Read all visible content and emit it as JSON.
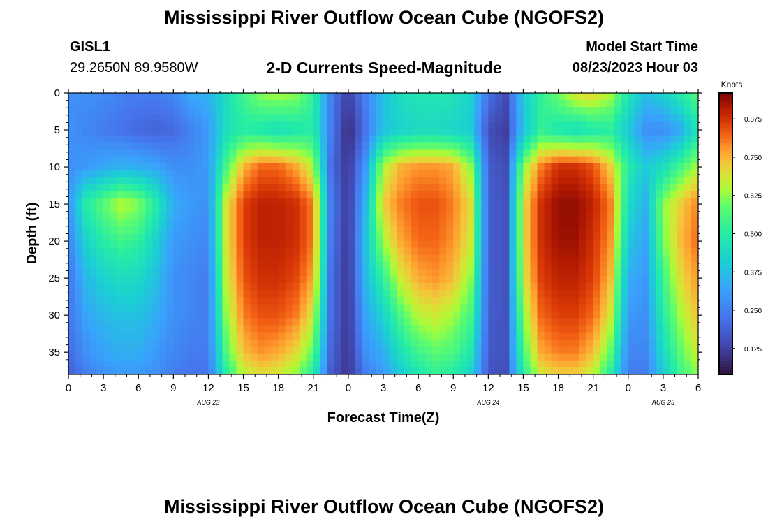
{
  "header": {
    "title": "Mississippi River Outflow Ocean Cube (NGOFS2)",
    "station_id": "GISL1",
    "station_coords": "29.2650N  89.9580W",
    "plot_title": "2-D Currents Speed-Magnitude",
    "start_time_label": "Model Start Time",
    "start_time_value": "08/23/2023 Hour 03"
  },
  "footer": {
    "title": "Mississippi River Outflow Ocean Cube (NGOFS2)"
  },
  "chart_data": {
    "type": "heatmap",
    "xlabel": "Forecast Time(Z)",
    "ylabel": "Depth (ft)",
    "colorbar_label": "Knots",
    "xlim": [
      0,
      54
    ],
    "ylim": [
      0,
      38
    ],
    "x_ticks": [
      0,
      3,
      6,
      9,
      12,
      15,
      18,
      21,
      24,
      27,
      30,
      33,
      36,
      39,
      42,
      45,
      48,
      51,
      54
    ],
    "x_tick_labels": [
      "0",
      "3",
      "6",
      "9",
      "12",
      "15",
      "18",
      "21",
      "0",
      "3",
      "6",
      "9",
      "12",
      "15",
      "18",
      "21",
      "0",
      "3",
      "6"
    ],
    "date_labels": [
      {
        "x": 12,
        "text": "AUG 23"
      },
      {
        "x": 36,
        "text": "AUG 24"
      },
      {
        "x": 51,
        "text": "AUG 25"
      }
    ],
    "y_ticks": [
      0,
      5,
      10,
      15,
      20,
      25,
      30,
      35
    ],
    "y_tick_labels": [
      "0",
      "5",
      "10",
      "15",
      "20",
      "25",
      "30",
      "35"
    ],
    "colorbar_ticks": [
      0.125,
      0.25,
      0.375,
      0.5,
      0.625,
      0.75,
      0.875
    ],
    "colorbar_tick_labels": [
      "0.125",
      "0.250",
      "0.375",
      "0.500",
      "0.625",
      "0.750",
      "0.875"
    ],
    "colorbar_range": [
      0.04,
      0.96
    ],
    "depths_ft": [
      0,
      5,
      10,
      15,
      20,
      25,
      30,
      35,
      38
    ],
    "times_hr": [
      0,
      1.5,
      3,
      4.5,
      6,
      7.5,
      9,
      10.5,
      12,
      13.5,
      15,
      16.5,
      18,
      19.5,
      21,
      22.5,
      24,
      25.5,
      27,
      28.5,
      30,
      31.5,
      33,
      34.5,
      36,
      37.5,
      39,
      40.5,
      42,
      43.5,
      45,
      46.5,
      48,
      49.5,
      51,
      52.5,
      54
    ],
    "speed_knots": [
      [
        0.28,
        0.28,
        0.27,
        0.25,
        0.24,
        0.24,
        0.26,
        0.33,
        0.35,
        0.45,
        0.55,
        0.62,
        0.65,
        0.62,
        0.52,
        0.25,
        0.12,
        0.25,
        0.38,
        0.45,
        0.48,
        0.48,
        0.47,
        0.42,
        0.22,
        0.15,
        0.4,
        0.52,
        0.6,
        0.7,
        0.72,
        0.65,
        0.48,
        0.38,
        0.42,
        0.5,
        0.58
      ],
      [
        0.28,
        0.26,
        0.24,
        0.22,
        0.2,
        0.19,
        0.2,
        0.25,
        0.3,
        0.45,
        0.5,
        0.48,
        0.45,
        0.48,
        0.5,
        0.25,
        0.08,
        0.22,
        0.38,
        0.42,
        0.44,
        0.44,
        0.43,
        0.4,
        0.15,
        0.12,
        0.38,
        0.52,
        0.48,
        0.45,
        0.48,
        0.5,
        0.4,
        0.28,
        0.27,
        0.33,
        0.48
      ],
      [
        0.28,
        0.3,
        0.33,
        0.35,
        0.34,
        0.32,
        0.28,
        0.28,
        0.3,
        0.55,
        0.75,
        0.82,
        0.82,
        0.76,
        0.65,
        0.22,
        0.1,
        0.3,
        0.65,
        0.75,
        0.78,
        0.78,
        0.76,
        0.62,
        0.18,
        0.15,
        0.62,
        0.8,
        0.88,
        0.88,
        0.84,
        0.72,
        0.5,
        0.4,
        0.45,
        0.55,
        0.65
      ],
      [
        0.28,
        0.5,
        0.58,
        0.66,
        0.62,
        0.5,
        0.34,
        0.3,
        0.28,
        0.68,
        0.86,
        0.9,
        0.9,
        0.88,
        0.8,
        0.25,
        0.1,
        0.36,
        0.72,
        0.8,
        0.84,
        0.84,
        0.8,
        0.7,
        0.18,
        0.16,
        0.7,
        0.88,
        0.94,
        0.94,
        0.9,
        0.8,
        0.45,
        0.35,
        0.62,
        0.72,
        0.8
      ],
      [
        0.25,
        0.42,
        0.5,
        0.54,
        0.52,
        0.42,
        0.3,
        0.28,
        0.26,
        0.68,
        0.86,
        0.9,
        0.9,
        0.88,
        0.8,
        0.24,
        0.1,
        0.38,
        0.64,
        0.76,
        0.82,
        0.82,
        0.78,
        0.68,
        0.18,
        0.16,
        0.7,
        0.88,
        0.93,
        0.93,
        0.88,
        0.78,
        0.4,
        0.32,
        0.6,
        0.74,
        0.82
      ],
      [
        0.22,
        0.36,
        0.42,
        0.45,
        0.44,
        0.38,
        0.28,
        0.26,
        0.24,
        0.66,
        0.84,
        0.88,
        0.88,
        0.85,
        0.76,
        0.22,
        0.1,
        0.36,
        0.52,
        0.68,
        0.76,
        0.78,
        0.74,
        0.62,
        0.18,
        0.16,
        0.68,
        0.86,
        0.9,
        0.9,
        0.86,
        0.74,
        0.34,
        0.3,
        0.54,
        0.7,
        0.78
      ],
      [
        0.22,
        0.32,
        0.36,
        0.38,
        0.38,
        0.34,
        0.28,
        0.26,
        0.24,
        0.62,
        0.8,
        0.84,
        0.84,
        0.8,
        0.68,
        0.22,
        0.1,
        0.32,
        0.42,
        0.56,
        0.66,
        0.68,
        0.64,
        0.55,
        0.18,
        0.16,
        0.62,
        0.82,
        0.86,
        0.86,
        0.82,
        0.68,
        0.3,
        0.28,
        0.5,
        0.64,
        0.74
      ],
      [
        0.2,
        0.28,
        0.32,
        0.34,
        0.34,
        0.3,
        0.26,
        0.24,
        0.24,
        0.56,
        0.74,
        0.78,
        0.76,
        0.7,
        0.58,
        0.2,
        0.1,
        0.28,
        0.34,
        0.46,
        0.54,
        0.58,
        0.56,
        0.48,
        0.17,
        0.16,
        0.56,
        0.76,
        0.8,
        0.8,
        0.74,
        0.58,
        0.26,
        0.26,
        0.44,
        0.58,
        0.68
      ],
      [
        0.18,
        0.24,
        0.28,
        0.3,
        0.3,
        0.28,
        0.24,
        0.22,
        0.22,
        0.5,
        0.66,
        0.7,
        0.68,
        0.62,
        0.5,
        0.18,
        0.1,
        0.24,
        0.3,
        0.4,
        0.48,
        0.52,
        0.5,
        0.42,
        0.16,
        0.15,
        0.5,
        0.68,
        0.72,
        0.72,
        0.66,
        0.5,
        0.24,
        0.24,
        0.4,
        0.54,
        0.62
      ]
    ]
  }
}
